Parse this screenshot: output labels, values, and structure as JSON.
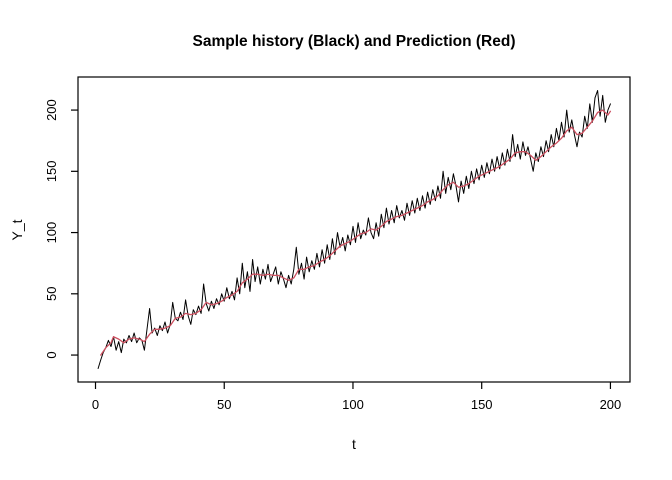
{
  "window": {
    "background": "#ffffff"
  },
  "chart_data": {
    "type": "line",
    "title": "Sample history (Black) and Prediction (Red)",
    "xlabel": "t",
    "ylabel": "Y_t",
    "x_ticks": [
      0,
      50,
      100,
      150,
      200
    ],
    "y_ticks": [
      0,
      50,
      100,
      150,
      200
    ],
    "x_range": [
      -6.8,
      207.6
    ],
    "y_range": [
      -22,
      227
    ],
    "grid": false,
    "legend": "none (encoded in title)",
    "frame_color": "#000000",
    "series": [
      {
        "name": "Sample history",
        "color": "#000000",
        "width": 1,
        "t_start": 1,
        "t_step": 1,
        "y": [
          -11,
          -4,
          2,
          6,
          12,
          7,
          15,
          4,
          11,
          2,
          13,
          10,
          16,
          11,
          18,
          10,
          14,
          12,
          4,
          21,
          38,
          18,
          22,
          16,
          24,
          20,
          27,
          18,
          25,
          43,
          30,
          28,
          35,
          29,
          45,
          32,
          25,
          37,
          33,
          40,
          34,
          58,
          42,
          36,
          44,
          38,
          46,
          41,
          50,
          44,
          55,
          46,
          52,
          45,
          63,
          50,
          75,
          55,
          68,
          52,
          78,
          60,
          72,
          58,
          70,
          62,
          74,
          60,
          66,
          72,
          58,
          68,
          62,
          55,
          65,
          58,
          70,
          88,
          66,
          75,
          62,
          80,
          68,
          77,
          70,
          83,
          72,
          86,
          75,
          90,
          78,
          95,
          82,
          100,
          88,
          96,
          85,
          98,
          90,
          105,
          92,
          108,
          95,
          102,
          98,
          112,
          100,
          95,
          108,
          97,
          115,
          104,
          120,
          107,
          118,
          108,
          122,
          112,
          118,
          110,
          124,
          114,
          126,
          116,
          128,
          118,
          130,
          120,
          133,
          123,
          135,
          126,
          138,
          128,
          150,
          132,
          145,
          135,
          148,
          138,
          125,
          142,
          132,
          146,
          136,
          150,
          140,
          152,
          143,
          155,
          145,
          157,
          148,
          160,
          150,
          162,
          152,
          165,
          155,
          168,
          158,
          180,
          162,
          172,
          160,
          174,
          163,
          170,
          160,
          150,
          165,
          158,
          170,
          162,
          175,
          166,
          180,
          170,
          185,
          175,
          190,
          178,
          200,
          182,
          192,
          180,
          170,
          182,
          178,
          195,
          185,
          205,
          190,
          210,
          216,
          195,
          212,
          190,
          200,
          205
        ]
      },
      {
        "name": "Prediction",
        "color": "#cd5060",
        "width": 1.3,
        "t": [
          2,
          4,
          6,
          7,
          9,
          11,
          13,
          15,
          17,
          19,
          21,
          23,
          25,
          27,
          29,
          31,
          33,
          35,
          37,
          39,
          41,
          43,
          45,
          47,
          49,
          51,
          53,
          55,
          57,
          59,
          61,
          63,
          65,
          67,
          69,
          71,
          73,
          75,
          77,
          79,
          81,
          83,
          85,
          87,
          89,
          91,
          93,
          95,
          97,
          99,
          101,
          103,
          105,
          107,
          109,
          111,
          113,
          115,
          117,
          119,
          121,
          123,
          125,
          127,
          129,
          131,
          133,
          135,
          137,
          139,
          141,
          143,
          145,
          147,
          149,
          151,
          153,
          155,
          157,
          159,
          161,
          163,
          165,
          167,
          169,
          171,
          173,
          175,
          177,
          179,
          181,
          183,
          185,
          187,
          189,
          191,
          193,
          195,
          197,
          199,
          200
        ],
        "y": [
          0,
          6,
          10,
          15,
          13,
          10,
          13,
          14,
          13,
          11,
          17,
          21,
          21,
          22,
          24,
          30,
          31,
          34,
          33,
          34,
          37,
          43,
          41,
          42,
          44,
          47,
          49,
          52,
          59,
          62,
          66,
          66,
          65,
          66,
          65,
          65,
          63,
          61,
          63,
          70,
          70,
          72,
          73,
          76,
          78,
          81,
          85,
          89,
          91,
          93,
          96,
          99,
          100,
          103,
          102,
          105,
          109,
          111,
          113,
          114,
          116,
          118,
          120,
          122,
          125,
          127,
          130,
          135,
          139,
          141,
          137,
          138,
          140,
          143,
          146,
          148,
          150,
          152,
          154,
          157,
          160,
          165,
          166,
          166,
          163,
          159,
          162,
          166,
          170,
          173,
          177,
          183,
          186,
          180,
          181,
          186,
          191,
          198,
          200,
          196,
          199
        ]
      }
    ]
  }
}
